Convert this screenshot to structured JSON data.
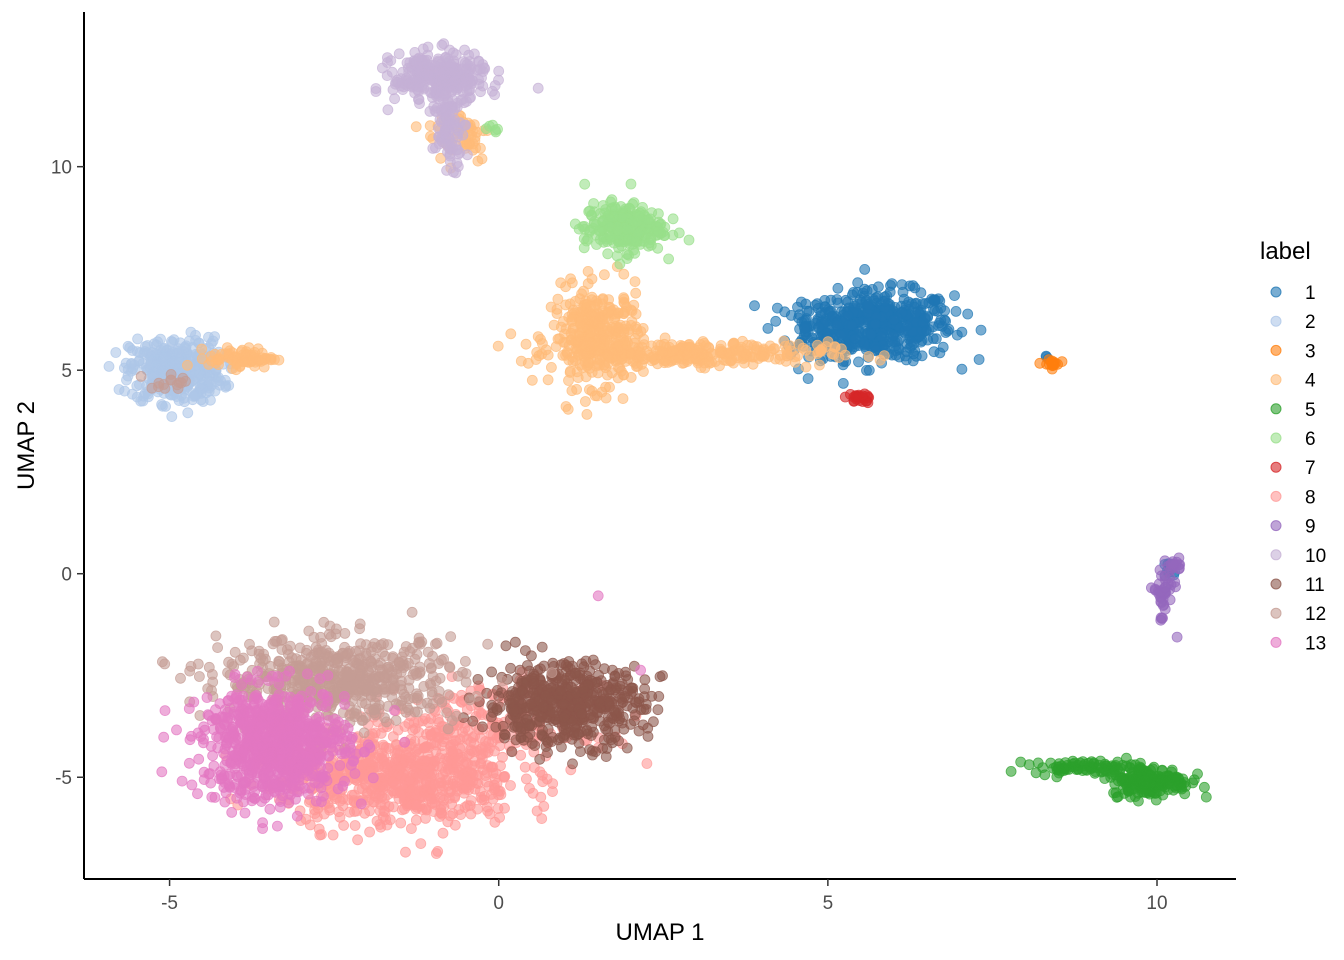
{
  "chart_data": {
    "type": "scatter",
    "xlabel": "UMAP 1",
    "ylabel": "UMAP 2",
    "xlim": [
      -6.3,
      11.2
    ],
    "ylim": [
      -7.5,
      13.8
    ],
    "xticks": [
      -5,
      0,
      5,
      10
    ],
    "yticks": [
      -5,
      0,
      5,
      10
    ],
    "xtick_labels": [
      "-5",
      "0",
      "5",
      "10"
    ],
    "ytick_labels": [
      "-5",
      "0",
      "5",
      "10"
    ],
    "grid": false,
    "legend": {
      "title": "label",
      "position": "right",
      "entries": [
        "1",
        "2",
        "3",
        "4",
        "5",
        "6",
        "7",
        "8",
        "9",
        "10",
        "11",
        "12",
        "13"
      ]
    },
    "series": [
      {
        "name": "1",
        "color": "#1f77b4",
        "clusters": [
          {
            "cx": 5.8,
            "cy": 6.1,
            "sx": 0.55,
            "sy": 0.42,
            "n": 500
          },
          {
            "cx": 4.9,
            "cy": 6.0,
            "sx": 0.35,
            "sy": 0.3,
            "n": 80
          },
          {
            "cx": 10.15,
            "cy": 0.0,
            "sx": 0.08,
            "sy": 0.15,
            "n": 8
          },
          {
            "cx": 8.3,
            "cy": 5.3,
            "sx": 0.05,
            "sy": 0.05,
            "n": 3
          }
        ]
      },
      {
        "name": "2",
        "color": "#aec7e8",
        "clusters": [
          {
            "cx": -4.9,
            "cy": 5.0,
            "sx": 0.35,
            "sy": 0.4,
            "n": 380
          }
        ]
      },
      {
        "name": "3",
        "color": "#ff7f0e",
        "clusters": [
          {
            "cx": 8.4,
            "cy": 5.15,
            "sx": 0.06,
            "sy": 0.05,
            "n": 20
          }
        ]
      },
      {
        "name": "4",
        "color": "#ffbb78",
        "clusters": [
          {
            "cx": 1.5,
            "cy": 5.8,
            "sx": 0.35,
            "sy": 0.6,
            "n": 350
          },
          {
            "cx": 3.0,
            "cy": 5.4,
            "sx": 1.0,
            "sy": 0.15,
            "n": 260
          },
          {
            "cx": -3.9,
            "cy": 5.3,
            "sx": 0.25,
            "sy": 0.12,
            "n": 80
          },
          {
            "cx": -0.6,
            "cy": 10.8,
            "sx": 0.25,
            "sy": 0.35,
            "n": 60
          }
        ]
      },
      {
        "name": "5",
        "color": "#2ca02c",
        "clusters": [
          {
            "cx": 9.9,
            "cy": -5.1,
            "sx": 0.3,
            "sy": 0.18,
            "n": 200
          },
          {
            "cx": 8.9,
            "cy": -4.75,
            "sx": 0.4,
            "sy": 0.08,
            "n": 80
          }
        ]
      },
      {
        "name": "6",
        "color": "#98df8a",
        "clusters": [
          {
            "cx": 1.9,
            "cy": 8.5,
            "sx": 0.3,
            "sy": 0.3,
            "n": 260
          },
          {
            "cx": -0.1,
            "cy": 11.0,
            "sx": 0.08,
            "sy": 0.08,
            "n": 6
          }
        ]
      },
      {
        "name": "7",
        "color": "#d62728",
        "clusters": [
          {
            "cx": 5.45,
            "cy": 4.3,
            "sx": 0.1,
            "sy": 0.06,
            "n": 25
          }
        ]
      },
      {
        "name": "8",
        "color": "#ff9896",
        "clusters": [
          {
            "cx": -1.5,
            "cy": -5.0,
            "sx": 0.9,
            "sy": 0.6,
            "n": 700
          },
          {
            "cx": -0.3,
            "cy": -3.8,
            "sx": 0.8,
            "sy": 0.5,
            "n": 200
          }
        ]
      },
      {
        "name": "9",
        "color": "#9467bd",
        "clusters": [
          {
            "cx": 10.1,
            "cy": -0.5,
            "sx": 0.08,
            "sy": 0.35,
            "n": 40
          },
          {
            "cx": 10.25,
            "cy": 0.2,
            "sx": 0.08,
            "sy": 0.08,
            "n": 15
          }
        ]
      },
      {
        "name": "10",
        "color": "#c5b0d5",
        "clusters": [
          {
            "cx": -0.9,
            "cy": 12.2,
            "sx": 0.35,
            "sy": 0.3,
            "n": 300
          },
          {
            "cx": -0.75,
            "cy": 11.0,
            "sx": 0.12,
            "sy": 0.5,
            "n": 100
          }
        ]
      },
      {
        "name": "11",
        "color": "#8c564b",
        "clusters": [
          {
            "cx": 1.0,
            "cy": -3.2,
            "sx": 0.6,
            "sy": 0.5,
            "n": 550
          }
        ]
      },
      {
        "name": "12",
        "color": "#c49c94",
        "clusters": [
          {
            "cx": -2.4,
            "cy": -2.6,
            "sx": 0.9,
            "sy": 0.5,
            "n": 600
          },
          {
            "cx": -5.0,
            "cy": 4.6,
            "sx": 0.2,
            "sy": 0.15,
            "n": 15
          }
        ]
      },
      {
        "name": "13",
        "color": "#e377c2",
        "clusters": [
          {
            "cx": -3.4,
            "cy": -4.2,
            "sx": 0.55,
            "sy": 0.7,
            "n": 800
          },
          {
            "cx": 1.5,
            "cy": -0.55,
            "sx": 0.02,
            "sy": 0.02,
            "n": 1
          },
          {
            "cx": 2.15,
            "cy": -2.35,
            "sx": 0.02,
            "sy": 0.02,
            "n": 1
          }
        ]
      }
    ]
  }
}
